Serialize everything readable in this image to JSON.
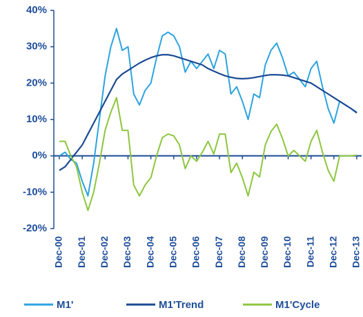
{
  "chart_data": {
    "type": "line",
    "categories": [
      "Dec-00",
      null,
      null,
      null,
      "Dec-01",
      null,
      null,
      null,
      "Dec-02",
      null,
      null,
      null,
      "Dec-03",
      null,
      null,
      null,
      "Dec-04",
      null,
      null,
      null,
      "Dec-05",
      null,
      null,
      null,
      "Dec-06",
      null,
      null,
      null,
      "Dec-07",
      null,
      null,
      null,
      "Dec-08",
      null,
      null,
      null,
      "Dec-09",
      null,
      null,
      null,
      "Dec-10",
      null,
      null,
      null,
      "Dec-11",
      null,
      null,
      null,
      "Dec-12",
      null,
      null,
      null,
      "Dec-13"
    ],
    "series": [
      {
        "name": "M1'",
        "color": "#2ba3df",
        "values": [
          0,
          1,
          -1,
          -2,
          -7,
          -11,
          -2,
          10,
          22,
          30,
          35,
          29,
          30,
          17,
          14,
          18,
          20,
          27,
          33,
          34,
          33,
          30,
          23,
          26,
          24,
          26,
          28,
          24,
          29,
          28,
          17,
          19,
          15,
          10,
          17,
          16,
          25,
          29,
          31,
          27,
          22,
          23,
          21,
          19,
          24,
          26,
          19,
          13,
          9,
          15,
          14,
          13,
          12
        ]
      },
      {
        "name": "M1'Trend",
        "color": "#1b4a93",
        "values": [
          -4,
          -3,
          -1,
          1,
          3,
          6,
          9,
          12,
          15,
          18,
          21,
          22.5,
          23.5,
          24.5,
          25.5,
          26.3,
          27,
          27.5,
          27.8,
          27.8,
          27.5,
          27,
          26.5,
          26,
          25.5,
          25,
          24,
          23.3,
          22.6,
          22,
          21.6,
          21.3,
          21.2,
          21.3,
          21.5,
          21.8,
          22.1,
          22.3,
          22.3,
          22.2,
          22,
          21.5,
          21,
          20.5,
          20,
          19,
          18,
          17,
          16,
          15,
          14,
          13,
          11.8
        ]
      },
      {
        "name": "M1'Cycle",
        "color": "#8cc63e",
        "values": [
          4,
          4,
          0,
          -3,
          -10,
          -15,
          -10,
          -2,
          7,
          12,
          16,
          7,
          7,
          -8,
          -11,
          -8,
          -6,
          0,
          5,
          6,
          5.5,
          3,
          -3.5,
          0,
          -1.5,
          1,
          4,
          0.5,
          6,
          6,
          -4.6,
          -2,
          -6,
          -11,
          -4.5,
          -5.8,
          3,
          6.7,
          8.7,
          4.8,
          0,
          1.5,
          0,
          -1.5,
          4,
          7,
          1,
          -4,
          -7,
          0,
          0,
          0,
          0.2
        ]
      }
    ],
    "ylim": [
      -20,
      40
    ],
    "yticks": [
      {
        "value": -20,
        "label": "-20%"
      },
      {
        "value": -10,
        "label": "-10%"
      },
      {
        "value": 0,
        "label": "0%"
      },
      {
        "value": 10,
        "label": "10%"
      },
      {
        "value": 20,
        "label": "20%"
      },
      {
        "value": 30,
        "label": "30%"
      },
      {
        "value": 40,
        "label": "40%"
      }
    ],
    "legend": "bottom"
  }
}
